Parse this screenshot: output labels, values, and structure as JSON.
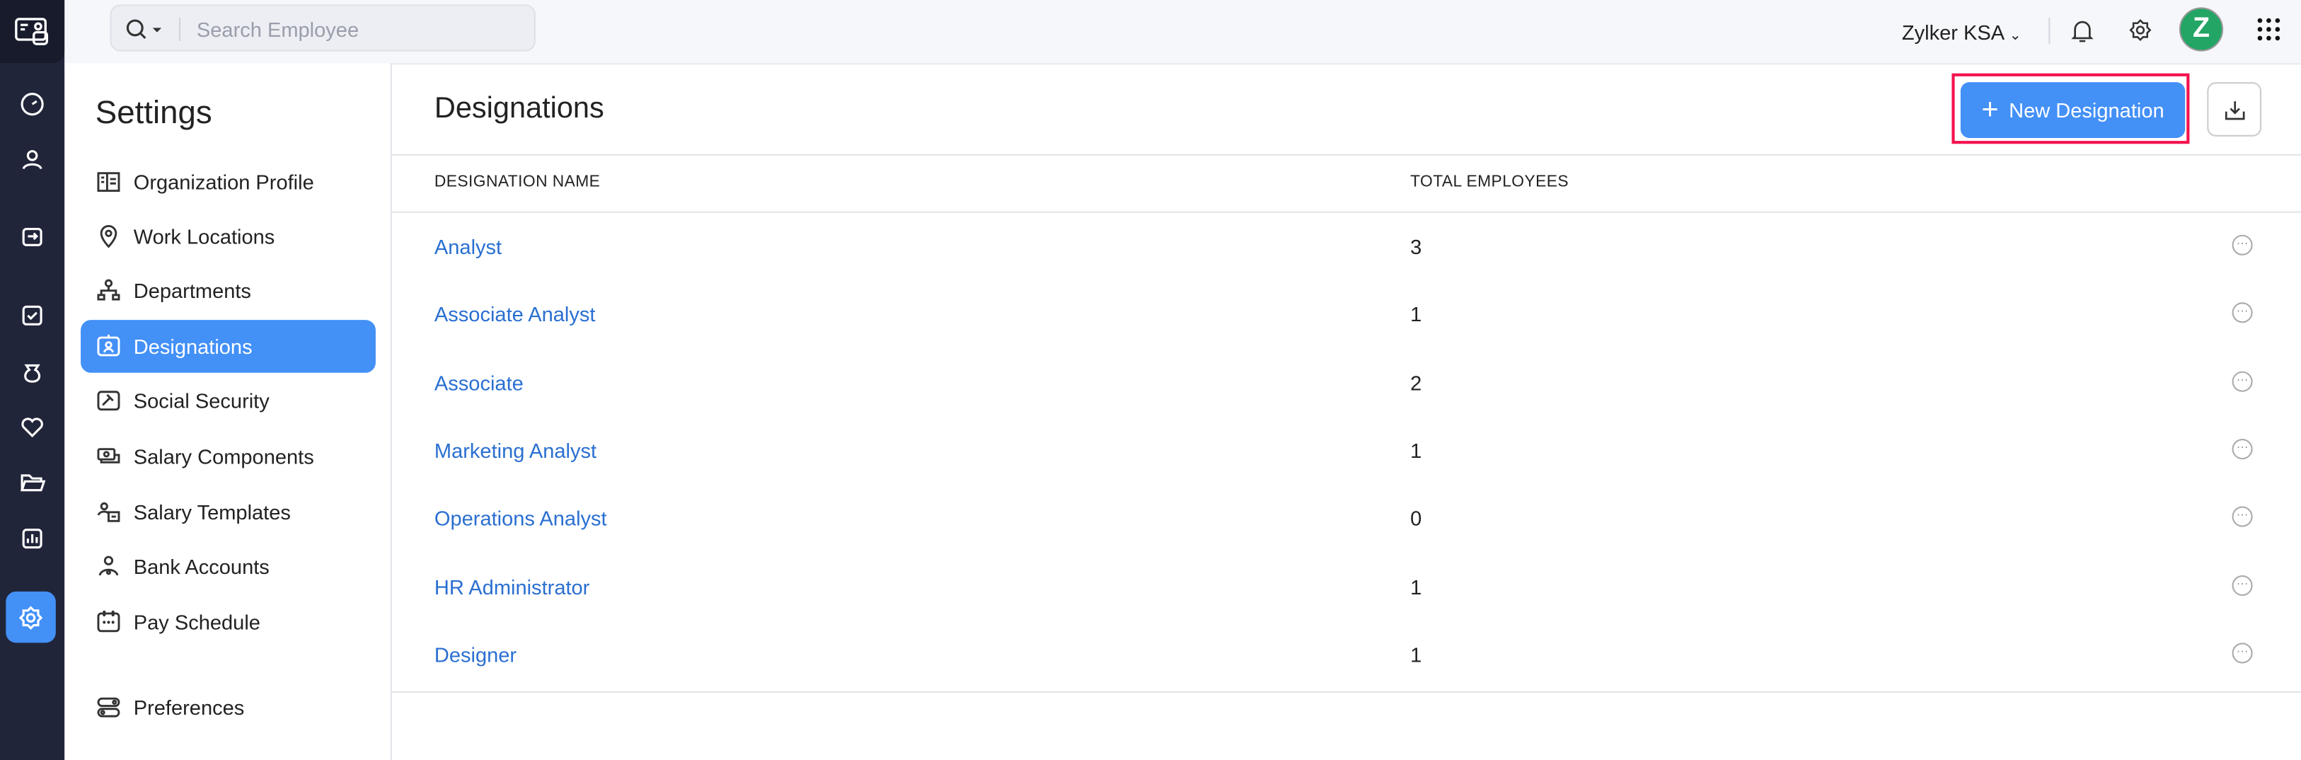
{
  "topbar": {
    "search_placeholder": "Search Employee",
    "org_name": "Zylker KSA",
    "avatar_letter": "Z",
    "avatar_color": "#22a565"
  },
  "sidebar": {
    "title": "Settings",
    "items": [
      {
        "label": "Organization Profile",
        "icon": "building-icon"
      },
      {
        "label": "Work Locations",
        "icon": "location-pin-icon"
      },
      {
        "label": "Departments",
        "icon": "org-chart-icon"
      },
      {
        "label": "Designations",
        "icon": "id-badge-icon",
        "active": true
      },
      {
        "label": "Social Security",
        "icon": "gavel-icon"
      },
      {
        "label": "Salary Components",
        "icon": "money-icon"
      },
      {
        "label": "Salary Templates",
        "icon": "user-template-icon"
      },
      {
        "label": "Bank Accounts",
        "icon": "user-bank-icon"
      },
      {
        "label": "Pay Schedule",
        "icon": "calendar-icon"
      },
      {
        "label": "Preferences",
        "icon": "toggles-icon"
      }
    ]
  },
  "main": {
    "title": "Designations",
    "new_button": "New Designation",
    "accent": "#4390f7",
    "columns": [
      "DESIGNATION NAME",
      "TOTAL EMPLOYEES"
    ],
    "rows": [
      {
        "name": "Analyst",
        "total": "3"
      },
      {
        "name": "Associate Analyst",
        "total": "1"
      },
      {
        "name": "Associate",
        "total": "2"
      },
      {
        "name": "Marketing Analyst",
        "total": "1"
      },
      {
        "name": "Operations Analyst",
        "total": "0"
      },
      {
        "name": "HR Administrator",
        "total": "1"
      },
      {
        "name": "Designer",
        "total": "1"
      }
    ]
  }
}
